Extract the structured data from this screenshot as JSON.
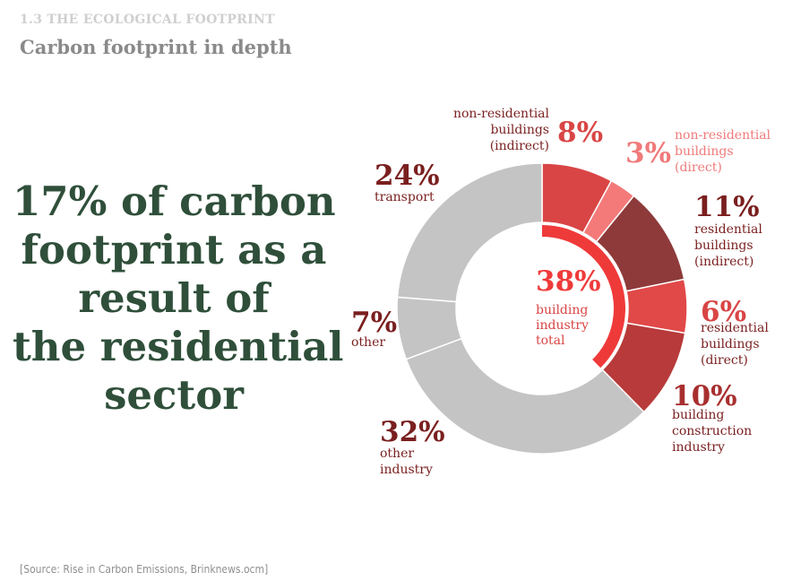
{
  "header": {
    "kicker": "1.3 THE ECOLOGICAL FOOTPRINT",
    "title": "Carbon footprint in depth"
  },
  "headline_lines": [
    "17% of carbon",
    "footprint as a",
    "result of",
    "the residential",
    "sector"
  ],
  "source": "[Source: Rise in Carbon Emissions, Brinknews.ocm]",
  "colors": {
    "headline": "#2f4f3a",
    "grey": "#c4c4c4",
    "dark_label": "#7a1f1f",
    "red_label": "#d94545",
    "pink_label": "#f07a7a",
    "inner_ring": "#ef3a3a"
  },
  "chart_data": {
    "type": "pie",
    "style": "donut",
    "start": "top, clockwise",
    "slices": [
      {
        "pct_label": "8%",
        "value": 8,
        "label": [
          "non-residential",
          "buildings",
          "(indirect)"
        ],
        "color": "#d94545",
        "label_color": "#d94545",
        "text_color": "#7a1f1f"
      },
      {
        "pct_label": "3%",
        "value": 3,
        "label": [
          "non-residential",
          "buildings",
          "(direct)"
        ],
        "color": "#f47a7a",
        "label_color": "#f07a7a",
        "text_color": "#f07a7a"
      },
      {
        "pct_label": "11%",
        "value": 11,
        "label": [
          "residential",
          "buildings",
          "(indirect)"
        ],
        "color": "#8e3a3a",
        "label_color": "#7a1f1f",
        "text_color": "#7a1f1f"
      },
      {
        "pct_label": "6%",
        "value": 6,
        "label": [
          "residential",
          "buildings",
          "(direct)"
        ],
        "color": "#e14848",
        "label_color": "#d94545",
        "text_color": "#7a1f1f"
      },
      {
        "pct_label": "10%",
        "value": 10,
        "label": [
          "building",
          "construction",
          "industry"
        ],
        "color": "#b83a3a",
        "label_color": "#a82f2f",
        "text_color": "#7a1f1f"
      },
      {
        "pct_label": "32%",
        "value": 32,
        "label": [
          "other",
          "industry"
        ],
        "color": "#c4c4c4",
        "label_color": "#7a1f1f",
        "text_color": "#7a1f1f"
      },
      {
        "pct_label": "7%",
        "value": 7,
        "label": [
          "other"
        ],
        "color": "#c4c4c4",
        "label_color": "#7a1f1f",
        "text_color": "#7a1f1f"
      },
      {
        "pct_label": "24%",
        "value": 24,
        "label": [
          "transport"
        ],
        "color": "#c4c4c4",
        "label_color": "#7a1f1f",
        "text_color": "#7a1f1f"
      }
    ],
    "total": {
      "pct_label": "38%",
      "value": 38,
      "label": [
        "building",
        "industry",
        "total"
      ],
      "color": "#ef3a3a"
    }
  }
}
